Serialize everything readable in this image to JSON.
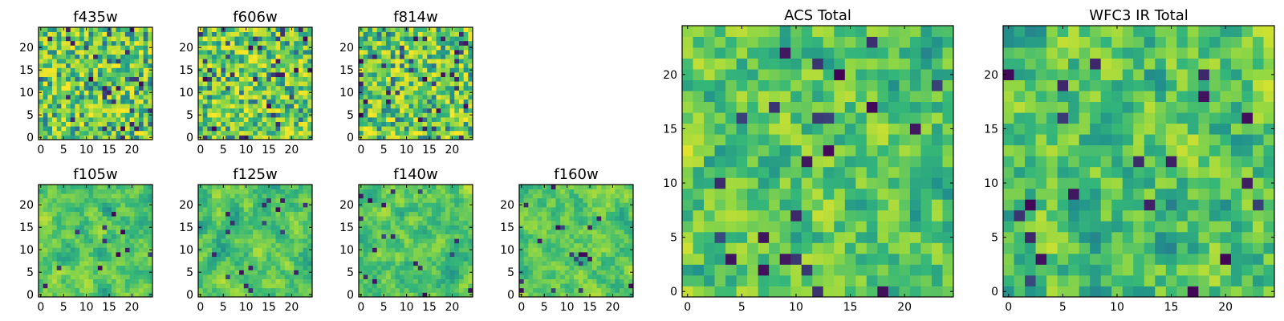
{
  "chart_data": [
    {
      "type": "heatmap",
      "title": "f435w",
      "xlim": [
        -0.5,
        24.5
      ],
      "ylim": [
        -0.5,
        24.5
      ],
      "grid": false,
      "xticks": [
        "0",
        "5",
        "10",
        "15",
        "20"
      ],
      "yticks": [
        "0",
        "5",
        "10",
        "15",
        "20"
      ],
      "rows": 25,
      "cols": 25,
      "values": "noisy 25x25 intensity map, mostly high (green-yellow) with sparse dark pixels"
    },
    {
      "type": "heatmap",
      "title": "f606w",
      "xlim": [
        -0.5,
        24.5
      ],
      "ylim": [
        -0.5,
        24.5
      ],
      "grid": false,
      "xticks": [
        "0",
        "5",
        "10",
        "15",
        "20"
      ],
      "yticks": [
        "0",
        "5",
        "10",
        "15",
        "20"
      ],
      "rows": 25,
      "cols": 25,
      "values": "noisy 25x25 intensity map, mostly high (green-yellow) with sparse dark pixels"
    },
    {
      "type": "heatmap",
      "title": "f814w",
      "xlim": [
        -0.5,
        24.5
      ],
      "ylim": [
        -0.5,
        24.5
      ],
      "grid": false,
      "xticks": [
        "0",
        "5",
        "10",
        "15",
        "20"
      ],
      "yticks": [
        "0",
        "5",
        "10",
        "15",
        "20"
      ],
      "rows": 25,
      "cols": 25,
      "values": "noisy 25x25 intensity map, mostly high (green-yellow) with sparse dark pixels"
    },
    {
      "type": "heatmap",
      "title": "f105w",
      "xlim": [
        -0.5,
        24.5
      ],
      "ylim": [
        -0.5,
        24.5
      ],
      "grid": false,
      "xticks": [
        "0",
        "5",
        "10",
        "15",
        "20"
      ],
      "yticks": [
        "0",
        "5",
        "10",
        "15",
        "20"
      ],
      "rows": 25,
      "cols": 25,
      "values": "smoothed 25x25 intensity map with dark clumps"
    },
    {
      "type": "heatmap",
      "title": "f125w",
      "xlim": [
        -0.5,
        24.5
      ],
      "ylim": [
        -0.5,
        24.5
      ],
      "grid": false,
      "xticks": [
        "0",
        "5",
        "10",
        "15",
        "20"
      ],
      "yticks": [
        "0",
        "5",
        "10",
        "15",
        "20"
      ],
      "rows": 25,
      "cols": 25,
      "values": "smoothed 25x25 intensity map with dark clumps"
    },
    {
      "type": "heatmap",
      "title": "f140w",
      "xlim": [
        -0.5,
        24.5
      ],
      "ylim": [
        -0.5,
        24.5
      ],
      "grid": false,
      "xticks": [
        "0",
        "5",
        "10",
        "15",
        "20"
      ],
      "yticks": [
        "0",
        "5",
        "10",
        "15",
        "20"
      ],
      "rows": 25,
      "cols": 25,
      "values": "smoothed 25x25 intensity map with dark clumps"
    },
    {
      "type": "heatmap",
      "title": "f160w",
      "xlim": [
        -0.5,
        24.5
      ],
      "ylim": [
        -0.5,
        24.5
      ],
      "grid": false,
      "xticks": [
        "0",
        "5",
        "10",
        "15",
        "20"
      ],
      "yticks": [
        "0",
        "5",
        "10",
        "15",
        "20"
      ],
      "rows": 25,
      "cols": 25,
      "values": "smoothed 25x25 intensity map with dark clumps"
    },
    {
      "type": "heatmap",
      "title": "ACS Total",
      "xlim": [
        -0.5,
        24.5
      ],
      "ylim": [
        -0.5,
        24.5
      ],
      "grid": false,
      "xticks": [
        "0",
        "5",
        "10",
        "15",
        "20"
      ],
      "yticks": [
        "0",
        "5",
        "10",
        "15",
        "20"
      ],
      "rows": 25,
      "cols": 25,
      "values": "blocky 25x25 intensity map, mostly high with scattered dark pixels"
    },
    {
      "type": "heatmap",
      "title": "WFC3 IR Total",
      "xlim": [
        -0.5,
        24.5
      ],
      "ylim": [
        -0.5,
        24.5
      ],
      "grid": false,
      "xticks": [
        "0",
        "5",
        "10",
        "15",
        "20"
      ],
      "yticks": [
        "0",
        "5",
        "10",
        "15",
        "20"
      ],
      "rows": 25,
      "cols": 25,
      "values": "blocky 25x25 intensity map, dark region at upper left, brighter toward right"
    }
  ],
  "colormap": [
    "#440154",
    "#31688e",
    "#21918c",
    "#35b779",
    "#90d743",
    "#fde725"
  ]
}
